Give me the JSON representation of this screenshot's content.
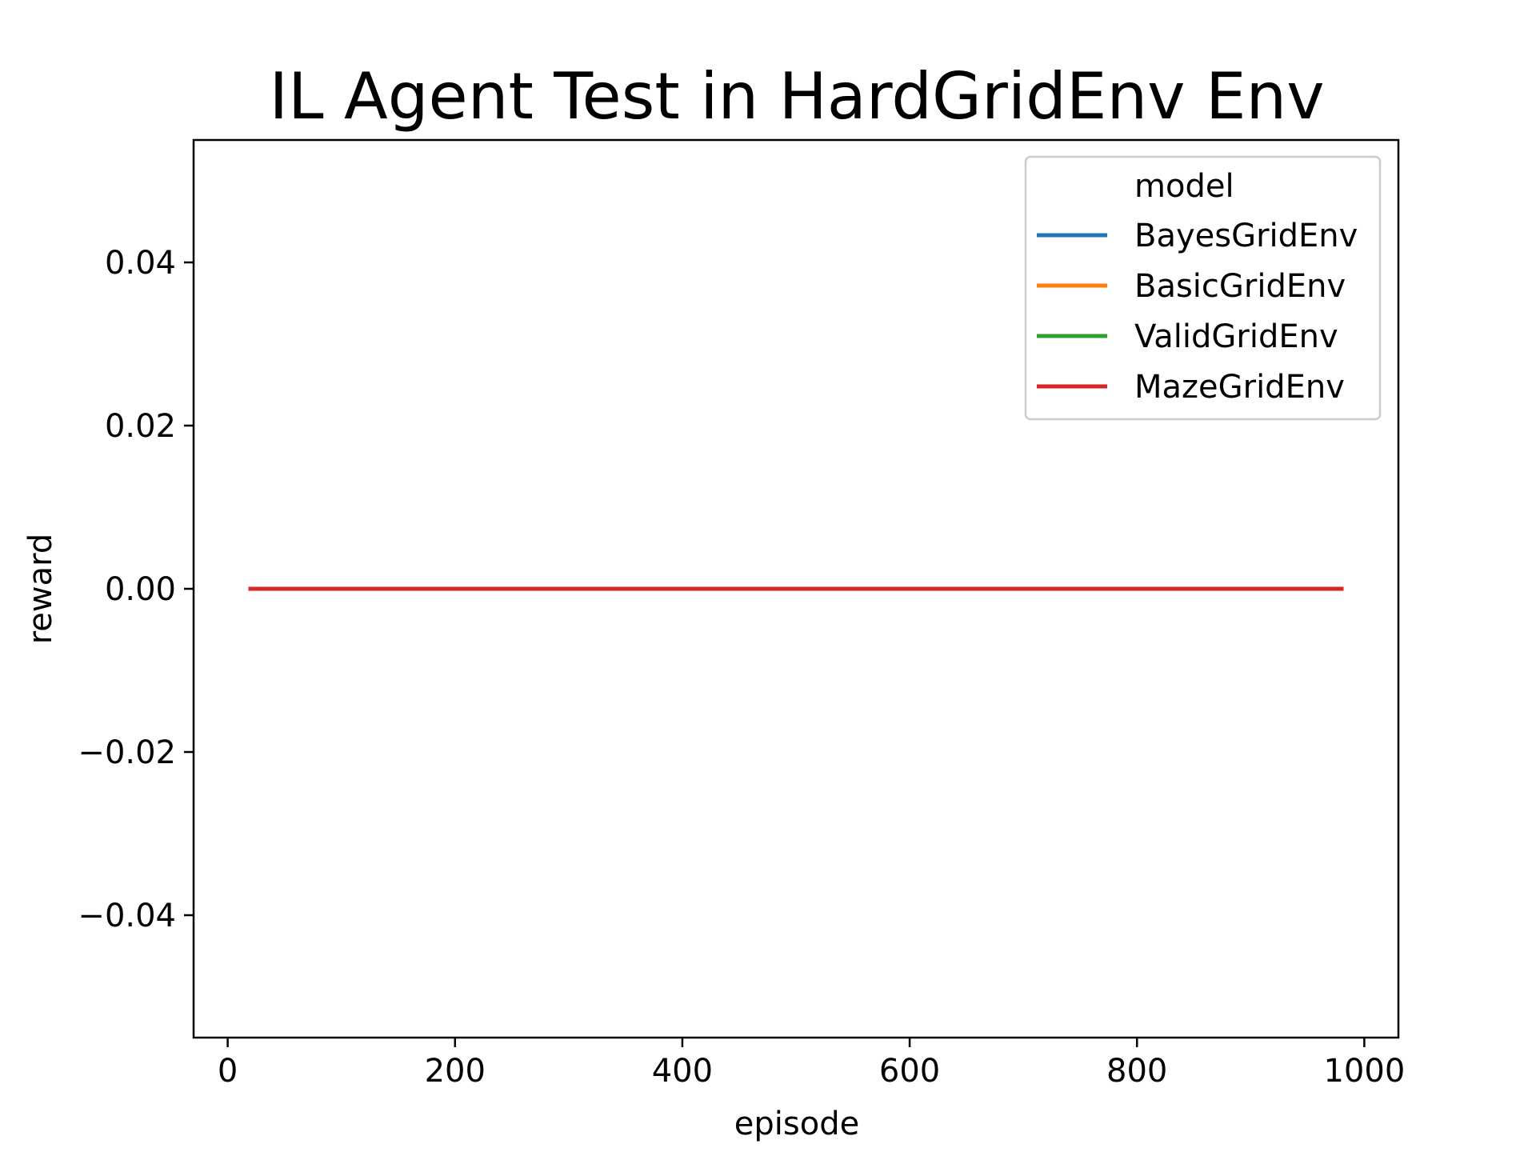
{
  "chart_data": {
    "type": "line",
    "title": "IL Agent Test in HardGridEnv Env",
    "xlabel": "episode",
    "ylabel": "reward",
    "xlim": [
      -30,
      1030
    ],
    "ylim": [
      -0.055,
      0.055
    ],
    "x_ticks": [
      0,
      200,
      400,
      600,
      800,
      1000
    ],
    "x_tick_labels": [
      "0",
      "200",
      "400",
      "600",
      "800",
      "1000"
    ],
    "y_ticks": [
      -0.04,
      -0.02,
      0.0,
      0.02,
      0.04
    ],
    "y_tick_labels": [
      "−0.04",
      "−0.02",
      "0.00",
      "0.02",
      "0.04"
    ],
    "grid": false,
    "legend": {
      "title": "model",
      "placement": "top-right"
    },
    "series": [
      {
        "name": "BayesGridEnv",
        "color": "#1f77b4",
        "x": [
          20,
          980
        ],
        "y": [
          0.0,
          0.0
        ]
      },
      {
        "name": "BasicGridEnv",
        "color": "#ff7f0e",
        "x": [
          20,
          980
        ],
        "y": [
          0.0,
          0.0
        ]
      },
      {
        "name": "ValidGridEnv",
        "color": "#2ca02c",
        "x": [
          20,
          980
        ],
        "y": [
          0.0,
          0.0
        ]
      },
      {
        "name": "MazeGridEnv",
        "color": "#d62728",
        "x": [
          20,
          980
        ],
        "y": [
          0.0,
          0.0
        ]
      }
    ]
  }
}
